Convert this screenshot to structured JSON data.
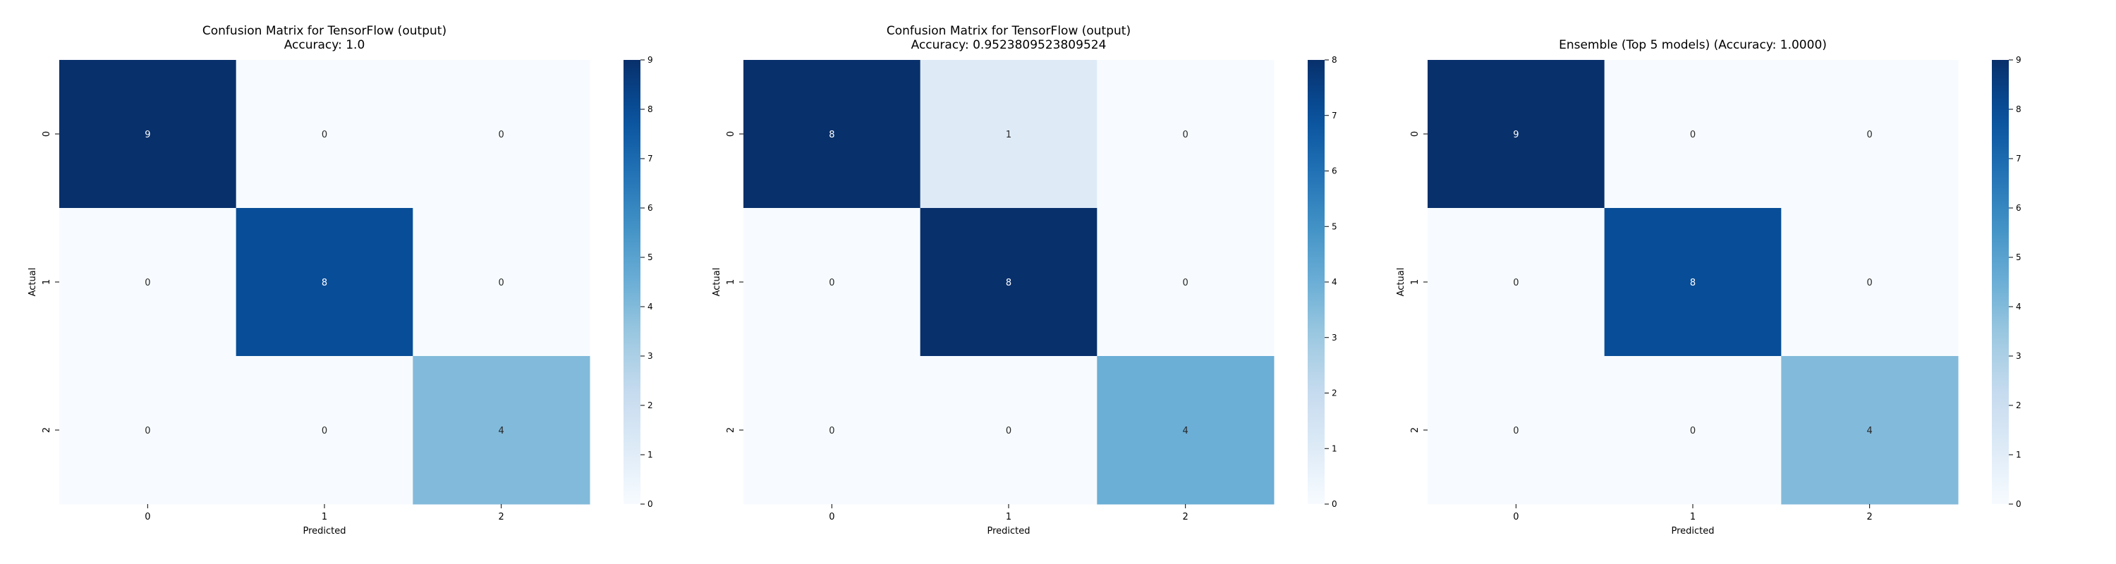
{
  "chart_data": [
    {
      "type": "heatmap",
      "title": [
        "Confusion Matrix for TensorFlow (output)",
        "Accuracy: 1.0"
      ],
      "xlabel": "Predicted",
      "ylabel": "Actual",
      "x_categories": [
        "0",
        "1",
        "2"
      ],
      "y_categories": [
        "0",
        "1",
        "2"
      ],
      "matrix": [
        [
          9,
          0,
          0
        ],
        [
          0,
          8,
          0
        ],
        [
          0,
          0,
          4
        ]
      ],
      "colormap": "Blues",
      "colorbar": {
        "min": 0,
        "max": 9,
        "ticks": [
          0,
          1,
          2,
          3,
          4,
          5,
          6,
          7,
          8,
          9
        ]
      }
    },
    {
      "type": "heatmap",
      "title": [
        "Confusion Matrix for TensorFlow (output)",
        "Accuracy: 0.9523809523809524"
      ],
      "xlabel": "Predicted",
      "ylabel": "Actual",
      "x_categories": [
        "0",
        "1",
        "2"
      ],
      "y_categories": [
        "0",
        "1",
        "2"
      ],
      "matrix": [
        [
          8,
          1,
          0
        ],
        [
          0,
          8,
          0
        ],
        [
          0,
          0,
          4
        ]
      ],
      "colormap": "Blues",
      "colorbar": {
        "min": 0,
        "max": 8,
        "ticks": [
          0,
          1,
          2,
          3,
          4,
          5,
          6,
          7,
          8
        ]
      }
    },
    {
      "type": "heatmap",
      "title": [
        "Ensemble (Top 5 models) (Accuracy: 1.0000)"
      ],
      "xlabel": "Predicted",
      "ylabel": "Actual",
      "x_categories": [
        "0",
        "1",
        "2"
      ],
      "y_categories": [
        "0",
        "1",
        "2"
      ],
      "matrix": [
        [
          9,
          0,
          0
        ],
        [
          0,
          8,
          0
        ],
        [
          0,
          0,
          4
        ]
      ],
      "colormap": "Blues",
      "colorbar": {
        "min": 0,
        "max": 9,
        "ticks": [
          0,
          1,
          2,
          3,
          4,
          5,
          6,
          7,
          8,
          9
        ]
      }
    }
  ],
  "colors": {
    "blues": [
      "#f7fbff",
      "#deebf7",
      "#c6dbef",
      "#9ecae1",
      "#6baed6",
      "#4292c6",
      "#2171b5",
      "#08519c",
      "#08306b"
    ]
  }
}
